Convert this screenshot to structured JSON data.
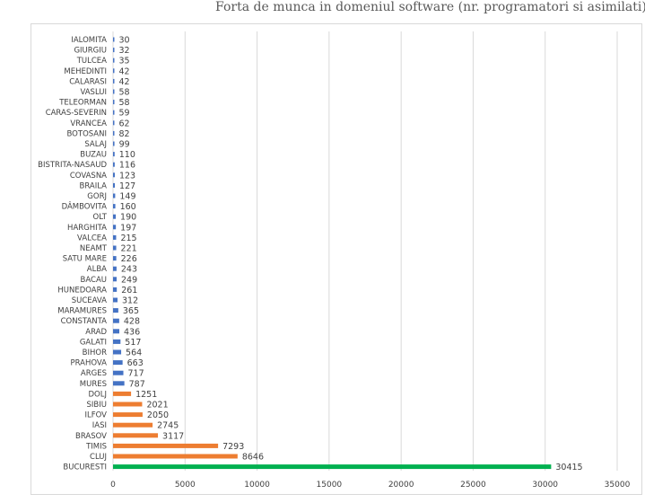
{
  "colors": {
    "low": "#4472c4",
    "mid": "#ed7d31",
    "top": "#00b050",
    "grid": "#d9d9d9"
  },
  "chart_data": {
    "type": "bar",
    "orientation": "horizontal",
    "title": "Forta de munca in domeniul software (nr. programatori si asimilati)",
    "xlim": [
      0,
      35000
    ],
    "x_ticks": [
      0,
      5000,
      10000,
      15000,
      20000,
      25000,
      30000,
      35000
    ],
    "grid": true,
    "legend": "none",
    "categories": [
      "IALOMITA",
      "GIURGIU",
      "TULCEA",
      "MEHEDINTI",
      "CALARASI",
      "VASLUI",
      "TELEORMAN",
      "CARAS-SEVERIN",
      "VRANCEA",
      "BOTOSANI",
      "SALAJ",
      "BUZAU",
      "BISTRITA-NASAUD",
      "COVASNA",
      "BRAILA",
      "GORJ",
      "DÂMBOVITA",
      "OLT",
      "HARGHITA",
      "VALCEA",
      "NEAMT",
      "SATU MARE",
      "ALBA",
      "BACAU",
      "HUNEDOARA",
      "SUCEAVA",
      "MARAMURES",
      "CONSTANTA",
      "ARAD",
      "GALATI",
      "BIHOR",
      "PRAHOVA",
      "ARGES",
      "MURES",
      "DOLJ",
      "SIBIU",
      "ILFOV",
      "IASI",
      "BRASOV",
      "TIMIS",
      "CLUJ",
      "BUCURESTI"
    ],
    "values": [
      30,
      32,
      35,
      42,
      42,
      58,
      58,
      59,
      62,
      82,
      99,
      110,
      116,
      123,
      127,
      149,
      160,
      190,
      197,
      215,
      221,
      226,
      243,
      249,
      261,
      312,
      365,
      428,
      436,
      517,
      564,
      663,
      717,
      787,
      1251,
      2021,
      2050,
      2745,
      3117,
      7293,
      8646,
      30415
    ],
    "bar_colors": [
      "low",
      "low",
      "low",
      "low",
      "low",
      "low",
      "low",
      "low",
      "low",
      "low",
      "low",
      "low",
      "low",
      "low",
      "low",
      "low",
      "low",
      "low",
      "low",
      "low",
      "low",
      "low",
      "low",
      "low",
      "low",
      "low",
      "low",
      "low",
      "low",
      "low",
      "low",
      "low",
      "low",
      "low",
      "mid",
      "mid",
      "mid",
      "mid",
      "mid",
      "mid",
      "mid",
      "top"
    ]
  }
}
